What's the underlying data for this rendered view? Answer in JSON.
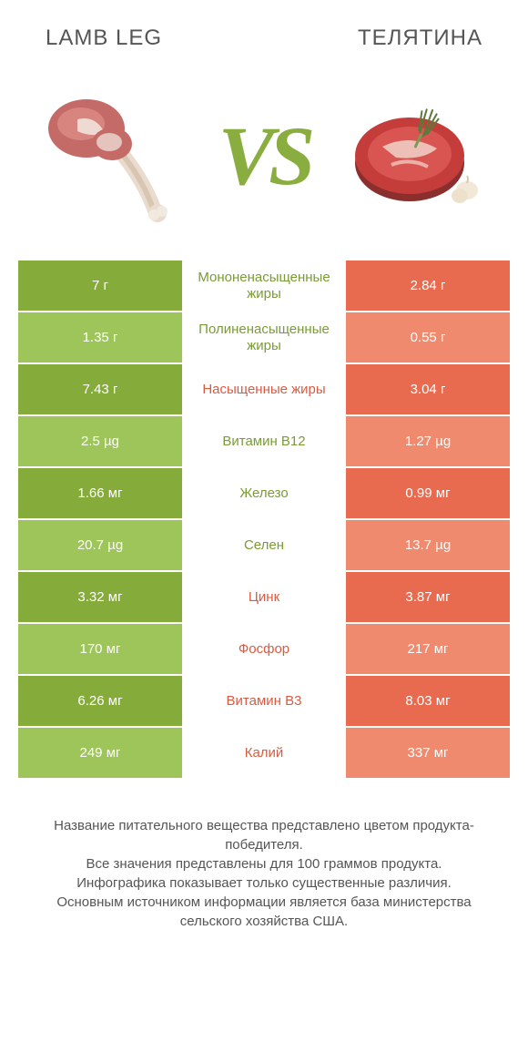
{
  "header": {
    "left_title": "Lamb leg",
    "right_title": "ТЕЛЯТИНА",
    "title_color": "#555555",
    "title_fontsize": 24
  },
  "vs": {
    "text": "VS",
    "color": "#8aad3f",
    "fontsize": 92
  },
  "colors": {
    "green_dark": "#85ab3a",
    "green_light": "#9ec55a",
    "coral_dark": "#e86a4f",
    "coral_light": "#ef8a6e",
    "label_green": "#7a9b35",
    "label_coral": "#d75c42",
    "background": "#ffffff",
    "text_white": "#ffffff",
    "text_body": "#555555"
  },
  "table": {
    "left_bg_colors": [
      "#85ab3a",
      "#9ec55a"
    ],
    "right_bg_colors": [
      "#e86a4f",
      "#ef8a6e"
    ],
    "rows": [
      {
        "left": "7 г",
        "label": "Мононенасыщенные жиры",
        "right": "2.84 г",
        "winner": "left"
      },
      {
        "left": "1.35 г",
        "label": "Полиненасыщенные жиры",
        "right": "0.55 г",
        "winner": "left"
      },
      {
        "left": "7.43 г",
        "label": "Насыщенные жиры",
        "right": "3.04 г",
        "winner": "right"
      },
      {
        "left": "2.5 µg",
        "label": "Витамин B12",
        "right": "1.27 µg",
        "winner": "left"
      },
      {
        "left": "1.66 мг",
        "label": "Железо",
        "right": "0.99 мг",
        "winner": "left"
      },
      {
        "left": "20.7 µg",
        "label": "Селен",
        "right": "13.7 µg",
        "winner": "left"
      },
      {
        "left": "3.32 мг",
        "label": "Цинк",
        "right": "3.87 мг",
        "winner": "right"
      },
      {
        "left": "170 мг",
        "label": "Фосфор",
        "right": "217 мг",
        "winner": "right"
      },
      {
        "left": "6.26 мг",
        "label": "Витамин B3",
        "right": "8.03 мг",
        "winner": "right"
      },
      {
        "left": "249 мг",
        "label": "Калий",
        "right": "337 мг",
        "winner": "right"
      }
    ]
  },
  "footer": {
    "lines": [
      "Название питательного вещества представлено цветом продукта-победителя.",
      "Все значения представлены для 100 граммов продукта.",
      "Инфографика показывает только существенные различия.",
      "Основным источником информации является база министерства сельского хозяйства США."
    ]
  },
  "images": {
    "left": {
      "name": "lamb-leg-image",
      "meat_color": "#c46b67",
      "fat_color": "#f2e9e1",
      "bone_color": "#e9dccf"
    },
    "right": {
      "name": "veal-steak-image",
      "meat_color": "#c43d3a",
      "fat_color": "#f3d9cf",
      "herb_color": "#5a7a3a",
      "garlic_color": "#f1e8d8"
    }
  }
}
